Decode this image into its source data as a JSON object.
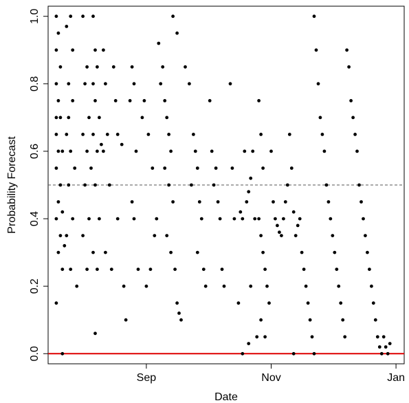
{
  "chart_data": {
    "type": "scatter",
    "title": "",
    "xlabel": "Date",
    "ylabel": "Probability Forecast",
    "x_axis": {
      "type": "date",
      "range": [
        "2012-07-15",
        "2013-01-05"
      ],
      "ticks": [
        {
          "value": "2012-09-01",
          "label": "Sep"
        },
        {
          "value": "2012-11-01",
          "label": "Nov"
        },
        {
          "value": "2013-01-01",
          "label": "Jan"
        }
      ]
    },
    "y_axis": {
      "range": [
        -0.03,
        1.03
      ],
      "ticks": [
        {
          "value": 0.0,
          "label": "0.0"
        },
        {
          "value": 0.2,
          "label": "0.2"
        },
        {
          "value": 0.4,
          "label": "0.4"
        },
        {
          "value": 0.6,
          "label": "0.6"
        },
        {
          "value": 0.8,
          "label": "0.8"
        },
        {
          "value": 1.0,
          "label": "1.0"
        }
      ]
    },
    "reference_lines": [
      {
        "y": 0.5,
        "style": "dashed",
        "color": "#555555"
      },
      {
        "y": 0.0,
        "style": "solid",
        "color": "#dd0000"
      }
    ],
    "grid": false,
    "legend": "none",
    "marker_color": "#000000",
    "points": [
      [
        "2012-07-19",
        1.0
      ],
      [
        "2012-07-20",
        0.95
      ],
      [
        "2012-07-19",
        0.9
      ],
      [
        "2012-07-21",
        0.85
      ],
      [
        "2012-07-19",
        0.8
      ],
      [
        "2012-07-20",
        0.75
      ],
      [
        "2012-07-19",
        0.7
      ],
      [
        "2012-07-21",
        0.7
      ],
      [
        "2012-07-19",
        0.65
      ],
      [
        "2012-07-20",
        0.6
      ],
      [
        "2012-07-22",
        0.6
      ],
      [
        "2012-07-19",
        0.55
      ],
      [
        "2012-07-21",
        0.5
      ],
      [
        "2012-07-20",
        0.45
      ],
      [
        "2012-07-22",
        0.42
      ],
      [
        "2012-07-19",
        0.4
      ],
      [
        "2012-07-21",
        0.35
      ],
      [
        "2012-07-23",
        0.32
      ],
      [
        "2012-07-20",
        0.3
      ],
      [
        "2012-07-22",
        0.25
      ],
      [
        "2012-07-19",
        0.15
      ],
      [
        "2012-07-22",
        0.0
      ],
      [
        "2012-07-24",
        0.97
      ],
      [
        "2012-07-26",
        1.0
      ],
      [
        "2012-07-27",
        0.9
      ],
      [
        "2012-07-25",
        0.8
      ],
      [
        "2012-07-27",
        0.75
      ],
      [
        "2012-07-25",
        0.7
      ],
      [
        "2012-07-24",
        0.65
      ],
      [
        "2012-07-26",
        0.6
      ],
      [
        "2012-07-28",
        0.55
      ],
      [
        "2012-07-25",
        0.5
      ],
      [
        "2012-07-27",
        0.4
      ],
      [
        "2012-07-24",
        0.35
      ],
      [
        "2012-07-26",
        0.25
      ],
      [
        "2012-07-29",
        0.2
      ],
      [
        "2012-08-01",
        1.0
      ],
      [
        "2012-08-03",
        0.85
      ],
      [
        "2012-08-02",
        0.8
      ],
      [
        "2012-08-04",
        0.7
      ],
      [
        "2012-08-01",
        0.65
      ],
      [
        "2012-08-03",
        0.6
      ],
      [
        "2012-08-05",
        0.55
      ],
      [
        "2012-08-02",
        0.5
      ],
      [
        "2012-08-04",
        0.4
      ],
      [
        "2012-08-01",
        0.35
      ],
      [
        "2012-08-03",
        0.25
      ],
      [
        "2012-08-06",
        1.0
      ],
      [
        "2012-08-07",
        0.9
      ],
      [
        "2012-08-08",
        0.85
      ],
      [
        "2012-08-06",
        0.8
      ],
      [
        "2012-08-07",
        0.75
      ],
      [
        "2012-08-09",
        0.7
      ],
      [
        "2012-08-06",
        0.65
      ],
      [
        "2012-08-08",
        0.6
      ],
      [
        "2012-08-10",
        0.62
      ],
      [
        "2012-08-07",
        0.5
      ],
      [
        "2012-08-09",
        0.4
      ],
      [
        "2012-08-06",
        0.3
      ],
      [
        "2012-08-08",
        0.25
      ],
      [
        "2012-08-07",
        0.06
      ],
      [
        "2012-08-11",
        0.9
      ],
      [
        "2012-08-12",
        0.8
      ],
      [
        "2012-08-13",
        0.65
      ],
      [
        "2012-08-11",
        0.6
      ],
      [
        "2012-08-14",
        0.5
      ],
      [
        "2012-08-12",
        0.3
      ],
      [
        "2012-08-15",
        0.25
      ],
      [
        "2012-08-16",
        0.85
      ],
      [
        "2012-08-17",
        0.75
      ],
      [
        "2012-08-18",
        0.65
      ],
      [
        "2012-08-20",
        0.62
      ],
      [
        "2012-08-18",
        0.4
      ],
      [
        "2012-08-21",
        0.2
      ],
      [
        "2012-08-22",
        0.1
      ],
      [
        "2012-08-25",
        0.85
      ],
      [
        "2012-08-26",
        0.8
      ],
      [
        "2012-08-24",
        0.75
      ],
      [
        "2012-08-27",
        0.6
      ],
      [
        "2012-08-25",
        0.45
      ],
      [
        "2012-08-26",
        0.4
      ],
      [
        "2012-08-28",
        0.25
      ],
      [
        "2012-08-30",
        0.7
      ],
      [
        "2012-08-31",
        0.75
      ],
      [
        "2012-09-02",
        0.65
      ],
      [
        "2012-09-04",
        0.55
      ],
      [
        "2012-09-06",
        0.4
      ],
      [
        "2012-09-05",
        0.35
      ],
      [
        "2012-09-03",
        0.25
      ],
      [
        "2012-09-01",
        0.2
      ],
      [
        "2012-09-07",
        0.92
      ],
      [
        "2012-09-09",
        0.85
      ],
      [
        "2012-09-08",
        0.8
      ],
      [
        "2012-09-10",
        0.75
      ],
      [
        "2012-09-11",
        0.7
      ],
      [
        "2012-09-12",
        0.65
      ],
      [
        "2012-09-13",
        0.6
      ],
      [
        "2012-09-10",
        0.55
      ],
      [
        "2012-09-12",
        0.5
      ],
      [
        "2012-09-14",
        0.45
      ],
      [
        "2012-09-11",
        0.35
      ],
      [
        "2012-09-13",
        0.3
      ],
      [
        "2012-09-15",
        0.25
      ],
      [
        "2012-09-16",
        0.15
      ],
      [
        "2012-09-17",
        0.12
      ],
      [
        "2012-09-18",
        0.1
      ],
      [
        "2012-09-16",
        0.95
      ],
      [
        "2012-09-14",
        1.0
      ],
      [
        "2012-09-20",
        0.85
      ],
      [
        "2012-09-22",
        0.8
      ],
      [
        "2012-09-24",
        0.65
      ],
      [
        "2012-09-25",
        0.6
      ],
      [
        "2012-09-26",
        0.55
      ],
      [
        "2012-09-23",
        0.5
      ],
      [
        "2012-09-27",
        0.45
      ],
      [
        "2012-09-28",
        0.4
      ],
      [
        "2012-09-26",
        0.3
      ],
      [
        "2012-09-29",
        0.25
      ],
      [
        "2012-09-30",
        0.2
      ],
      [
        "2012-10-02",
        0.75
      ],
      [
        "2012-10-03",
        0.6
      ],
      [
        "2012-10-05",
        0.55
      ],
      [
        "2012-10-04",
        0.5
      ],
      [
        "2012-10-06",
        0.45
      ],
      [
        "2012-10-07",
        0.4
      ],
      [
        "2012-10-08",
        0.25
      ],
      [
        "2012-10-09",
        0.2
      ],
      [
        "2012-10-12",
        0.8
      ],
      [
        "2012-10-13",
        0.55
      ],
      [
        "2012-10-14",
        0.4
      ],
      [
        "2012-10-16",
        0.15
      ],
      [
        "2012-10-17",
        0.42
      ],
      [
        "2012-10-18",
        0.4
      ],
      [
        "2012-10-19",
        0.6
      ],
      [
        "2012-10-21",
        0.48
      ],
      [
        "2012-10-20",
        0.45
      ],
      [
        "2012-10-22",
        0.52
      ],
      [
        "2012-10-23",
        0.6
      ],
      [
        "2012-10-24",
        0.4
      ],
      [
        "2012-10-22",
        0.2
      ],
      [
        "2012-10-25",
        0.05
      ],
      [
        "2012-10-21",
        0.03
      ],
      [
        "2012-10-18",
        0.0
      ],
      [
        "2012-10-26",
        0.75
      ],
      [
        "2012-10-27",
        0.65
      ],
      [
        "2012-10-28",
        0.55
      ],
      [
        "2012-10-26",
        0.4
      ],
      [
        "2012-10-27",
        0.35
      ],
      [
        "2012-10-28",
        0.3
      ],
      [
        "2012-10-29",
        0.25
      ],
      [
        "2012-10-30",
        0.2
      ],
      [
        "2012-10-31",
        0.15
      ],
      [
        "2012-10-27",
        0.1
      ],
      [
        "2012-10-29",
        0.05
      ],
      [
        "2012-11-01",
        0.6
      ],
      [
        "2012-11-02",
        0.45
      ],
      [
        "2012-11-03",
        0.4
      ],
      [
        "2012-11-04",
        0.38
      ],
      [
        "2012-11-05",
        0.36
      ],
      [
        "2012-11-06",
        0.35
      ],
      [
        "2012-11-07",
        0.4
      ],
      [
        "2012-11-08",
        0.45
      ],
      [
        "2012-11-09",
        0.5
      ],
      [
        "2012-11-10",
        0.65
      ],
      [
        "2012-11-11",
        0.55
      ],
      [
        "2012-11-12",
        0.42
      ],
      [
        "2012-11-13",
        0.35
      ],
      [
        "2012-11-14",
        0.38
      ],
      [
        "2012-11-15",
        0.4
      ],
      [
        "2012-11-16",
        0.3
      ],
      [
        "2012-11-17",
        0.25
      ],
      [
        "2012-11-18",
        0.2
      ],
      [
        "2012-11-19",
        0.15
      ],
      [
        "2012-11-20",
        0.1
      ],
      [
        "2012-11-21",
        0.05
      ],
      [
        "2012-11-22",
        0.0
      ],
      [
        "2012-11-12",
        0.0
      ],
      [
        "2012-11-22",
        1.0
      ],
      [
        "2012-11-23",
        0.9
      ],
      [
        "2012-11-24",
        0.8
      ],
      [
        "2012-11-25",
        0.7
      ],
      [
        "2012-11-26",
        0.65
      ],
      [
        "2012-11-27",
        0.6
      ],
      [
        "2012-11-28",
        0.5
      ],
      [
        "2012-11-29",
        0.45
      ],
      [
        "2012-11-30",
        0.4
      ],
      [
        "2012-12-01",
        0.35
      ],
      [
        "2012-12-02",
        0.3
      ],
      [
        "2012-12-03",
        0.25
      ],
      [
        "2012-12-04",
        0.2
      ],
      [
        "2012-12-05",
        0.15
      ],
      [
        "2012-12-06",
        0.1
      ],
      [
        "2012-12-07",
        0.05
      ],
      [
        "2012-12-08",
        0.9
      ],
      [
        "2012-12-09",
        0.85
      ],
      [
        "2012-12-10",
        0.75
      ],
      [
        "2012-12-11",
        0.7
      ],
      [
        "2012-12-12",
        0.65
      ],
      [
        "2012-12-13",
        0.6
      ],
      [
        "2012-12-14",
        0.5
      ],
      [
        "2012-12-15",
        0.45
      ],
      [
        "2012-12-16",
        0.4
      ],
      [
        "2012-12-17",
        0.35
      ],
      [
        "2012-12-18",
        0.3
      ],
      [
        "2012-12-19",
        0.25
      ],
      [
        "2012-12-20",
        0.2
      ],
      [
        "2012-12-21",
        0.15
      ],
      [
        "2012-12-22",
        0.1
      ],
      [
        "2012-12-23",
        0.05
      ],
      [
        "2012-12-24",
        0.02
      ],
      [
        "2012-12-25",
        0.0
      ],
      [
        "2012-12-26",
        0.05
      ],
      [
        "2012-12-27",
        0.02
      ],
      [
        "2012-12-28",
        0.0
      ],
      [
        "2012-12-29",
        0.03
      ]
    ]
  }
}
